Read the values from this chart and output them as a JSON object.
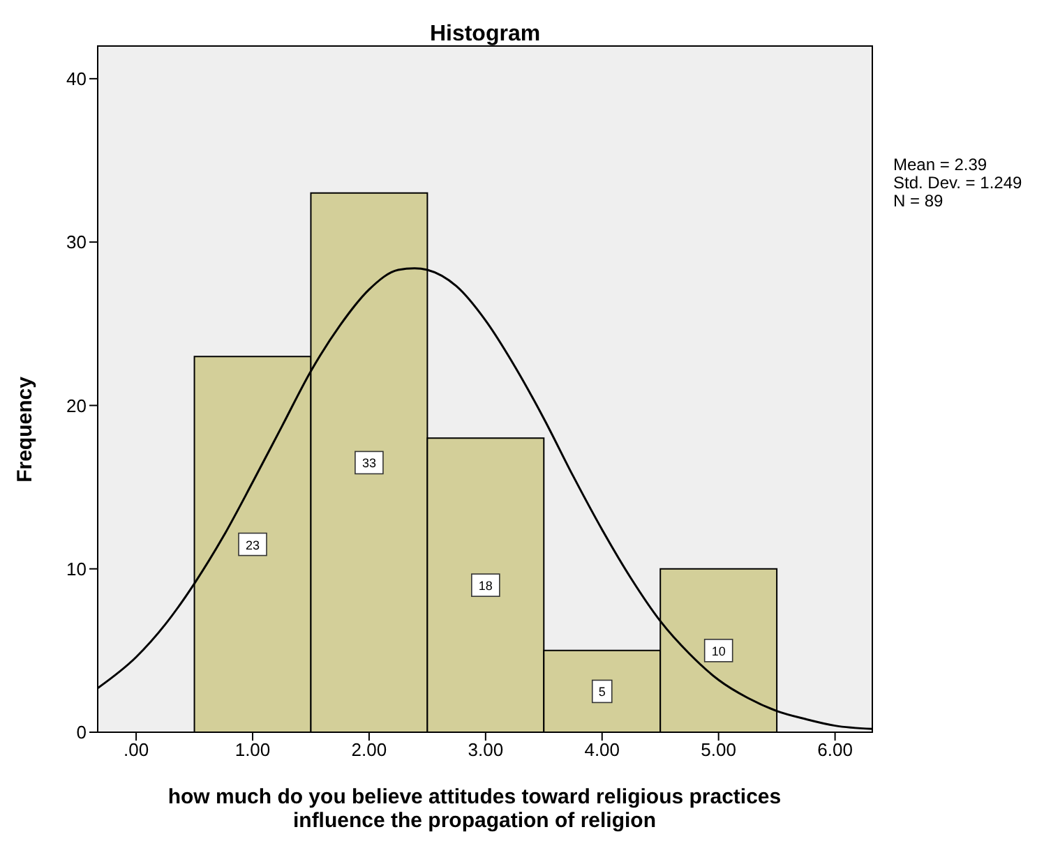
{
  "chart_data": {
    "type": "histogram",
    "title": "Histogram",
    "xlabel": "how much do you believe attitudes toward religious practices influence the propagation of religion",
    "ylabel": "Frequency",
    "bins": [
      0.5,
      1.5,
      2.5,
      3.5,
      4.5,
      5.5
    ],
    "values": [
      23,
      33,
      18,
      5,
      10
    ],
    "color": "#d3cf99",
    "value_labels": [
      "23",
      "33",
      "18",
      "5",
      "10"
    ],
    "series": [
      {
        "type": "line",
        "color": "#000000",
        "x": [
          -0.33,
          0,
          0.25,
          0.5,
          0.75,
          1.0,
          1.25,
          1.5,
          1.75,
          2.0,
          2.25,
          2.39,
          2.5,
          2.75,
          3.0,
          3.25,
          3.5,
          3.75,
          4.0,
          4.25,
          4.5,
          4.75,
          5.0,
          5.25,
          5.5,
          5.75,
          6.0,
          6.32
        ],
        "values": [
          2.7,
          4.6,
          6.6,
          9.1,
          12.0,
          15.3,
          18.7,
          22.1,
          24.9,
          27.1,
          28.3,
          28.4,
          28.3,
          27.3,
          25.2,
          22.4,
          19.2,
          15.7,
          12.4,
          9.4,
          6.8,
          4.8,
          3.2,
          2.1,
          1.3,
          0.8,
          0.4,
          0.2
        ]
      }
    ],
    "marker": "none",
    "xlim": [
      -0.33,
      6.32
    ],
    "xticks": [
      {
        "value": 0,
        "label": ".00"
      },
      {
        "value": 1,
        "label": "1.00"
      },
      {
        "value": 2,
        "label": "2.00"
      },
      {
        "value": 3,
        "label": "3.00"
      },
      {
        "value": 4,
        "label": "4.00"
      },
      {
        "value": 5,
        "label": "5.00"
      },
      {
        "value": 6,
        "label": "6.00"
      }
    ],
    "ylim": [
      0,
      42
    ],
    "yticks": [
      0,
      10,
      20,
      30,
      40
    ],
    "annotations": [
      "Mean = 2.39",
      "Std. Dev. = 1.249",
      "N = 89"
    ],
    "grid": false
  }
}
